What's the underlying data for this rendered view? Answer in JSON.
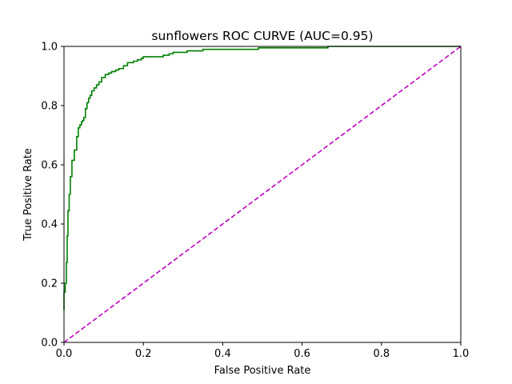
{
  "chart_data": {
    "type": "line",
    "title": "sunflowers ROC CURVE (AUC=0.95)",
    "xlabel": "False Positive Rate",
    "ylabel": "True Positive Rate",
    "xlim": [
      0.0,
      1.0
    ],
    "ylim": [
      0.0,
      1.0
    ],
    "xticks": [
      "0.0",
      "0.2",
      "0.4",
      "0.6",
      "0.8",
      "1.0"
    ],
    "yticks": [
      "0.0",
      "0.2",
      "0.4",
      "0.6",
      "0.8",
      "1.0"
    ],
    "grid": false,
    "legend": "none",
    "series": [
      {
        "role": "roc",
        "color": "#008000",
        "style": "solid",
        "step": true,
        "x": [
          0.0,
          0.0,
          0.003,
          0.003,
          0.006,
          0.006,
          0.008,
          0.008,
          0.01,
          0.01,
          0.013,
          0.013,
          0.016,
          0.016,
          0.02,
          0.02,
          0.026,
          0.026,
          0.032,
          0.032,
          0.036,
          0.036,
          0.04,
          0.04,
          0.044,
          0.044,
          0.047,
          0.047,
          0.05,
          0.05,
          0.054,
          0.054,
          0.058,
          0.058,
          0.062,
          0.062,
          0.066,
          0.066,
          0.07,
          0.07,
          0.076,
          0.076,
          0.082,
          0.082,
          0.088,
          0.088,
          0.095,
          0.095,
          0.104,
          0.104,
          0.113,
          0.113,
          0.12,
          0.12,
          0.13,
          0.13,
          0.138,
          0.138,
          0.15,
          0.15,
          0.16,
          0.16,
          0.175,
          0.175,
          0.185,
          0.185,
          0.195,
          0.195,
          0.2,
          0.2,
          0.25,
          0.25,
          0.265,
          0.265,
          0.275,
          0.275,
          0.31,
          0.31,
          0.35,
          0.35,
          0.49,
          0.49,
          0.665,
          0.665,
          1.0
        ],
        "y": [
          0.11,
          0.17,
          0.17,
          0.2,
          0.2,
          0.27,
          0.27,
          0.36,
          0.36,
          0.445,
          0.445,
          0.5,
          0.5,
          0.56,
          0.56,
          0.615,
          0.615,
          0.65,
          0.65,
          0.695,
          0.695,
          0.725,
          0.725,
          0.735,
          0.735,
          0.745,
          0.745,
          0.75,
          0.75,
          0.76,
          0.76,
          0.79,
          0.79,
          0.81,
          0.81,
          0.825,
          0.825,
          0.835,
          0.835,
          0.85,
          0.85,
          0.86,
          0.86,
          0.87,
          0.87,
          0.88,
          0.88,
          0.895,
          0.895,
          0.905,
          0.905,
          0.91,
          0.91,
          0.915,
          0.915,
          0.92,
          0.92,
          0.925,
          0.925,
          0.935,
          0.935,
          0.945,
          0.945,
          0.95,
          0.95,
          0.955,
          0.955,
          0.96,
          0.96,
          0.965,
          0.965,
          0.97,
          0.97,
          0.975,
          0.975,
          0.98,
          0.98,
          0.985,
          0.985,
          0.99,
          0.99,
          0.995,
          0.995,
          1.0,
          1.0
        ]
      },
      {
        "role": "chance",
        "color": "#bf00bf",
        "style": "dashed",
        "x": [
          0.0,
          1.0
        ],
        "y": [
          0.0,
          1.0
        ]
      }
    ]
  }
}
